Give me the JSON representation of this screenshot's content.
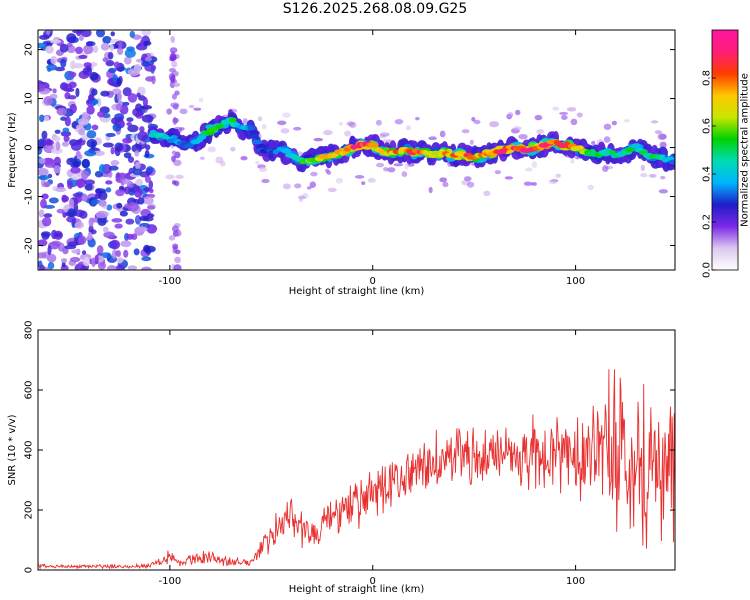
{
  "title": "S126.2025.268.08.09.G25",
  "chart_data": [
    {
      "type": "heatmap",
      "xlabel": "Height of straight line (km)",
      "ylabel": "Frequency (Hz)",
      "xlim": [
        -165,
        149
      ],
      "ylim": [
        -25,
        24
      ],
      "xticks": [
        -100,
        0,
        100
      ],
      "yticks": [
        -20,
        -10,
        0,
        10,
        20
      ],
      "colorbar": {
        "label": "Normalized spectral amplitude",
        "range": [
          0,
          1
        ],
        "ticks": [
          0.0,
          0.2,
          0.4,
          0.6,
          0.8
        ],
        "tick_labels": [
          "0.0",
          "0.2",
          "0.4",
          "0.6",
          "0.8"
        ],
        "colormap": [
          "#ffffff",
          "#dcc8f0",
          "#7a28e6",
          "#1e1ec8",
          "#00b4ff",
          "#00dcb4",
          "#00d200",
          "#c8e600",
          "#ffc800",
          "#ff3c00",
          "#ff1e78",
          "#ff14a0"
        ]
      },
      "ridge": {
        "x": [
          -108,
          -100,
          -95,
          -90,
          -85,
          -80,
          -75,
          -70,
          -65,
          -60,
          -55,
          -50,
          -45,
          -40,
          -35,
          -30,
          -25,
          -20,
          -15,
          -10,
          -5,
          0,
          5,
          10,
          15,
          20,
          25,
          30,
          35,
          40,
          45,
          50,
          55,
          60,
          65,
          70,
          75,
          80,
          85,
          90,
          95,
          100,
          105,
          110,
          115,
          120,
          125,
          130,
          135,
          140,
          145,
          149
        ],
        "freq": [
          2.5,
          2.0,
          1.0,
          0.5,
          2.0,
          3.5,
          4.5,
          5.5,
          4.0,
          4.0,
          -0.5,
          -1.0,
          -0.5,
          -1.5,
          -3.0,
          -2.5,
          -2.0,
          -1.5,
          -1.0,
          0.0,
          0.5,
          0.5,
          -1.0,
          -1.0,
          -0.5,
          -1.0,
          -1.0,
          -1.5,
          -1.0,
          -1.5,
          -1.5,
          -2.0,
          -1.5,
          -1.0,
          -0.5,
          0.0,
          -0.5,
          0.0,
          0.5,
          1.0,
          0.5,
          0.0,
          -1.0,
          -1.5,
          -1.0,
          -1.5,
          -1.0,
          0.5,
          -1.5,
          -2.0,
          -2.5,
          -3.0
        ],
        "amplitude": [
          0.45,
          0.4,
          0.35,
          0.35,
          0.4,
          0.5,
          0.55,
          0.5,
          0.4,
          0.35,
          0.3,
          0.3,
          0.35,
          0.4,
          0.5,
          0.6,
          0.65,
          0.7,
          0.75,
          0.85,
          0.9,
          0.8,
          0.7,
          0.75,
          0.7,
          0.8,
          0.75,
          0.65,
          0.7,
          0.75,
          0.8,
          0.7,
          0.75,
          0.85,
          0.8,
          0.9,
          0.95,
          0.85,
          0.9,
          0.85,
          0.8,
          0.7,
          0.6,
          0.55,
          0.5,
          0.45,
          0.5,
          0.45,
          0.5,
          0.45,
          0.4,
          0.35
        ]
      },
      "noise_region_x": [
        -165,
        -108
      ]
    },
    {
      "type": "line",
      "xlabel": "Height of straight line (km)",
      "ylabel": "SNR (10 * v/v)",
      "xlim": [
        -165,
        149
      ],
      "ylim": [
        0,
        800
      ],
      "xticks": [
        -100,
        0,
        100
      ],
      "yticks": [
        0,
        200,
        400,
        600,
        800
      ],
      "series": [
        {
          "color": "#e83030",
          "x": [
            -165,
            -150,
            -140,
            -130,
            -120,
            -110,
            -100,
            -95,
            -90,
            -85,
            -80,
            -75,
            -70,
            -65,
            -60,
            -55,
            -50,
            -45,
            -40,
            -35,
            -30,
            -25,
            -20,
            -15,
            -10,
            -5,
            0,
            5,
            10,
            15,
            20,
            25,
            30,
            35,
            40,
            45,
            50,
            55,
            60,
            65,
            70,
            75,
            80,
            85,
            90,
            95,
            100,
            105,
            110,
            115,
            120,
            125,
            130,
            135,
            140,
            145,
            149
          ],
          "y": [
            12,
            12,
            12,
            12,
            12,
            15,
            50,
            20,
            35,
            40,
            45,
            35,
            25,
            25,
            25,
            80,
            120,
            150,
            180,
            140,
            120,
            150,
            170,
            190,
            200,
            230,
            250,
            270,
            290,
            310,
            320,
            340,
            360,
            370,
            380,
            380,
            380,
            380,
            390,
            380,
            380,
            380,
            390,
            380,
            390,
            390,
            400,
            400,
            390,
            400,
            400,
            390,
            380,
            360,
            350,
            340,
            330
          ],
          "amplitude": [
            8,
            6,
            6,
            6,
            6,
            8,
            30,
            12,
            15,
            20,
            25,
            20,
            15,
            15,
            15,
            40,
            60,
            60,
            60,
            70,
            60,
            60,
            70,
            80,
            90,
            80,
            80,
            80,
            80,
            80,
            80,
            90,
            100,
            100,
            100,
            100,
            100,
            100,
            100,
            100,
            100,
            110,
            120,
            130,
            130,
            140,
            150,
            170,
            200,
            230,
            260,
            270,
            280,
            300,
            300,
            300,
            300
          ]
        }
      ]
    }
  ]
}
